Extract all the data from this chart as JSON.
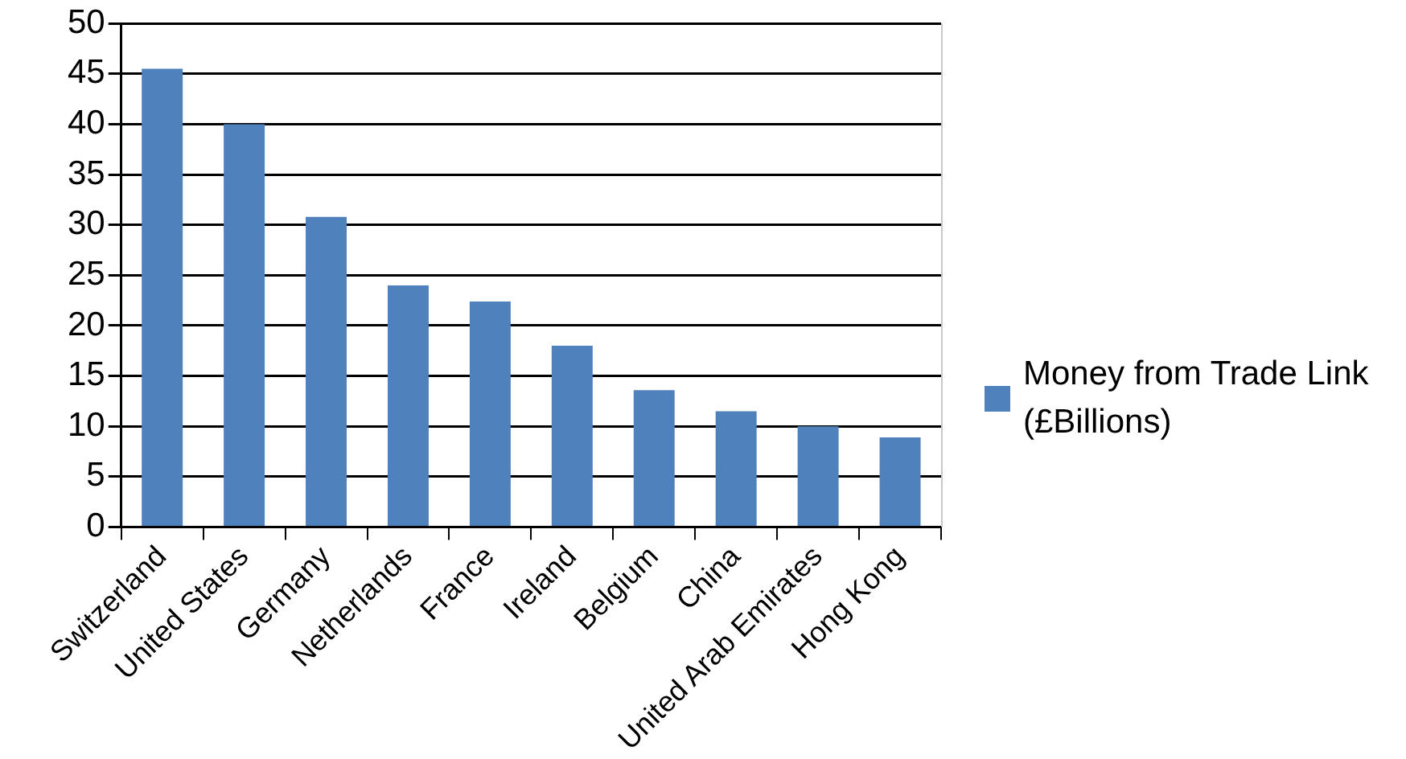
{
  "chart_data": {
    "type": "bar",
    "categories": [
      "Switzerland",
      "United States",
      "Germany",
      "Netherlands",
      "France",
      "Ireland",
      "Belgium",
      "China",
      "United Arab Emirates",
      "Hong Kong"
    ],
    "series": [
      {
        "name": "Money from Trade Link (£Billions)",
        "color": "#4f81bd",
        "values": [
          45.5,
          40,
          30.8,
          24,
          22.4,
          18,
          13.6,
          11.5,
          10,
          8.9
        ]
      }
    ],
    "ylim": [
      0,
      50
    ],
    "yticks": [
      0,
      5,
      10,
      15,
      20,
      25,
      30,
      35,
      40,
      45,
      50
    ],
    "grid": "y",
    "legend": "right"
  }
}
